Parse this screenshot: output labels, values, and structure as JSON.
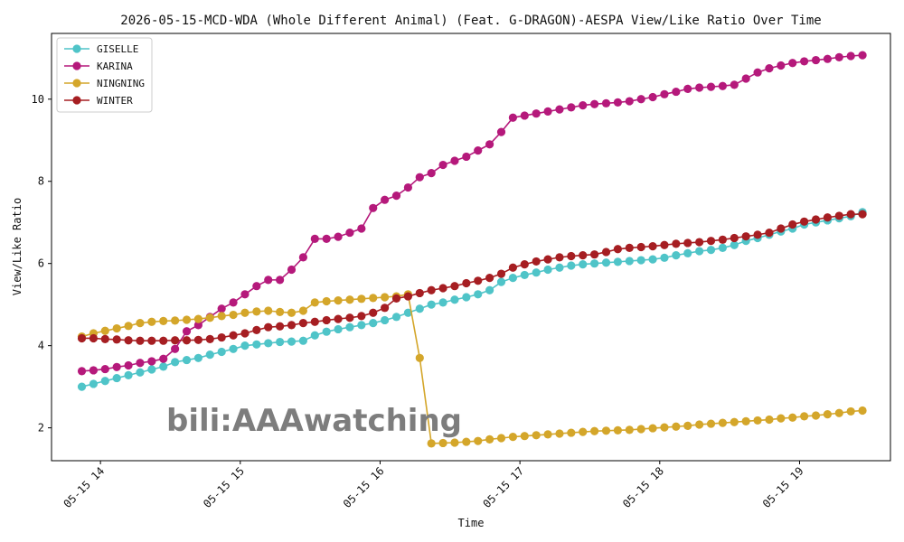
{
  "chart_data": {
    "type": "line",
    "title": "2026-05-15-MCD-WDA (Whole Different Animal) (Feat. G-DRAGON)-AESPA View/Like Ratio Over Time",
    "xlabel": "Time",
    "ylabel": "View/Like Ratio",
    "xlim": [
      "05-15 13:39",
      "05-15 19:39"
    ],
    "ylim": [
      1.2,
      11.6
    ],
    "x_ticks": [
      "05-15 14",
      "05-15 15",
      "05-15 16",
      "05-15 17",
      "05-15 18",
      "05-15 19"
    ],
    "y_ticks": [
      2,
      4,
      6,
      8,
      10
    ],
    "grid": false,
    "legend_position": "top-left",
    "watermark": "bili:AAAwatching",
    "x": [
      "05-15 13:52",
      "05-15 13:57",
      "05-15 14:02",
      "05-15 14:07",
      "05-15 14:12",
      "05-15 14:17",
      "05-15 14:22",
      "05-15 14:27",
      "05-15 14:32",
      "05-15 14:37",
      "05-15 14:42",
      "05-15 14:47",
      "05-15 14:52",
      "05-15 14:57",
      "05-15 15:02",
      "05-15 15:07",
      "05-15 15:12",
      "05-15 15:17",
      "05-15 15:22",
      "05-15 15:27",
      "05-15 15:32",
      "05-15 15:37",
      "05-15 15:42",
      "05-15 15:47",
      "05-15 15:52",
      "05-15 15:57",
      "05-15 16:02",
      "05-15 16:07",
      "05-15 16:12",
      "05-15 16:17",
      "05-15 16:22",
      "05-15 16:27",
      "05-15 16:32",
      "05-15 16:37",
      "05-15 16:42",
      "05-15 16:47",
      "05-15 16:52",
      "05-15 16:57",
      "05-15 17:02",
      "05-15 17:07",
      "05-15 17:12",
      "05-15 17:17",
      "05-15 17:22",
      "05-15 17:27",
      "05-15 17:32",
      "05-15 17:37",
      "05-15 17:42",
      "05-15 17:47",
      "05-15 17:52",
      "05-15 17:57",
      "05-15 18:02",
      "05-15 18:07",
      "05-15 18:12",
      "05-15 18:17",
      "05-15 18:22",
      "05-15 18:27",
      "05-15 18:32",
      "05-15 18:37",
      "05-15 18:42",
      "05-15 18:47",
      "05-15 18:52",
      "05-15 18:57",
      "05-15 19:02",
      "05-15 19:07",
      "05-15 19:12",
      "05-15 19:17",
      "05-15 19:22",
      "05-15 19:27"
    ],
    "series": [
      {
        "name": "GISELLE",
        "color": "#4fc4c8",
        "values": [
          3.0,
          3.07,
          3.14,
          3.21,
          3.28,
          3.35,
          3.42,
          3.49,
          3.6,
          3.65,
          3.7,
          3.78,
          3.85,
          3.92,
          4.0,
          4.03,
          4.06,
          4.09,
          4.1,
          4.12,
          4.25,
          4.34,
          4.4,
          4.45,
          4.5,
          4.55,
          4.62,
          4.7,
          4.8,
          4.9,
          5.0,
          5.05,
          5.12,
          5.18,
          5.25,
          5.35,
          5.55,
          5.65,
          5.72,
          5.78,
          5.85,
          5.9,
          5.95,
          5.98,
          6.0,
          6.02,
          6.04,
          6.06,
          6.08,
          6.1,
          6.14,
          6.2,
          6.25,
          6.3,
          6.33,
          6.38,
          6.45,
          6.55,
          6.62,
          6.7,
          6.78,
          6.85,
          6.95,
          7.0,
          7.05,
          7.1,
          7.15,
          7.25
        ]
      },
      {
        "name": "KARINA",
        "color": "#b5197b",
        "values": [
          3.38,
          3.4,
          3.43,
          3.48,
          3.52,
          3.58,
          3.62,
          3.68,
          3.92,
          4.35,
          4.5,
          4.7,
          4.9,
          5.05,
          5.25,
          5.45,
          5.6,
          5.6,
          5.85,
          6.15,
          6.6,
          6.6,
          6.65,
          6.75,
          6.85,
          7.35,
          7.55,
          7.65,
          7.85,
          8.1,
          8.2,
          8.4,
          8.5,
          8.6,
          8.75,
          8.9,
          9.2,
          9.55,
          9.6,
          9.65,
          9.7,
          9.75,
          9.8,
          9.85,
          9.88,
          9.9,
          9.92,
          9.95,
          10.0,
          10.05,
          10.12,
          10.18,
          10.25,
          10.28,
          10.3,
          10.32,
          10.35,
          10.5,
          10.65,
          10.75,
          10.82,
          10.88,
          10.92,
          10.95,
          10.98,
          11.02,
          11.05,
          11.07
        ]
      },
      {
        "name": "NINGNING",
        "color": "#d4a62a",
        "values": [
          4.22,
          4.3,
          4.36,
          4.42,
          4.48,
          4.55,
          4.58,
          4.6,
          4.61,
          4.63,
          4.65,
          4.68,
          4.72,
          4.75,
          4.8,
          4.83,
          4.85,
          4.82,
          4.8,
          4.85,
          5.05,
          5.08,
          5.1,
          5.12,
          5.14,
          5.16,
          5.18,
          5.2,
          5.25,
          3.7,
          1.62,
          1.63,
          1.64,
          1.66,
          1.68,
          1.72,
          1.75,
          1.78,
          1.8,
          1.82,
          1.84,
          1.86,
          1.88,
          1.9,
          1.92,
          1.93,
          1.94,
          1.95,
          1.97,
          1.99,
          2.01,
          2.03,
          2.05,
          2.08,
          2.1,
          2.12,
          2.14,
          2.16,
          2.18,
          2.2,
          2.23,
          2.25,
          2.28,
          2.3,
          2.33,
          2.36,
          2.4,
          2.42
        ]
      },
      {
        "name": "WINTER",
        "color": "#a61e22",
        "values": [
          4.18,
          4.18,
          4.16,
          4.15,
          4.13,
          4.12,
          4.12,
          4.12,
          4.13,
          4.13,
          4.14,
          4.16,
          4.2,
          4.25,
          4.3,
          4.38,
          4.45,
          4.47,
          4.5,
          4.55,
          4.58,
          4.62,
          4.65,
          4.68,
          4.72,
          4.8,
          4.92,
          5.15,
          5.2,
          5.28,
          5.35,
          5.4,
          5.45,
          5.52,
          5.58,
          5.65,
          5.75,
          5.9,
          5.98,
          6.05,
          6.1,
          6.15,
          6.18,
          6.2,
          6.22,
          6.28,
          6.35,
          6.38,
          6.4,
          6.42,
          6.45,
          6.48,
          6.5,
          6.52,
          6.55,
          6.58,
          6.62,
          6.66,
          6.7,
          6.75,
          6.85,
          6.95,
          7.02,
          7.07,
          7.12,
          7.16,
          7.2,
          7.2
        ]
      }
    ]
  }
}
